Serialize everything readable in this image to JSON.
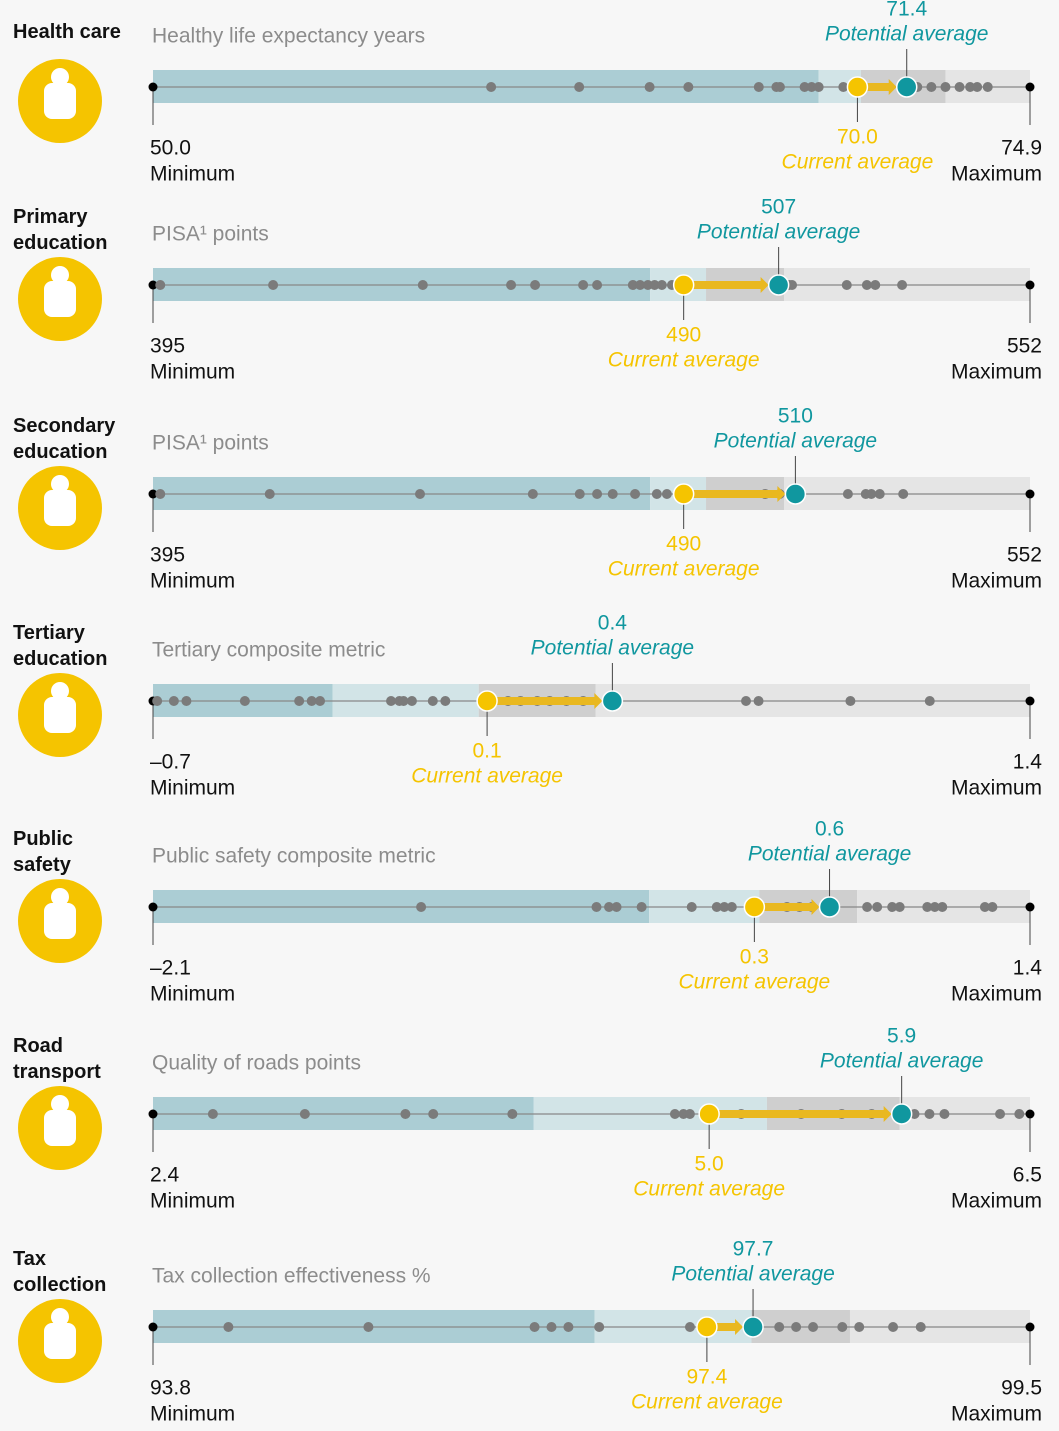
{
  "labels": {
    "minimum": "Minimum",
    "maximum": "Maximum",
    "current": "Current average",
    "potential": "Potential average"
  },
  "colors": {
    "bands": [
      "#abcdd4",
      "#d2e4e7",
      "#cfcfcf",
      "#e5e5e5"
    ],
    "dot": "#7b7b7b",
    "current": "#f5c400",
    "potential": "#10979f",
    "arrow": "#e9b820",
    "icon": "#f5c400"
  },
  "chart_data": [
    {
      "type": "strip",
      "category": "Health care",
      "metric": "Healthy life expectancy years",
      "xlim": [
        50.0,
        74.9
      ],
      "xticks": [
        {
          "value": 50.0,
          "label": "50.0"
        },
        {
          "value": 74.9,
          "label": "74.9"
        }
      ],
      "values": [
        59.6,
        62.1,
        64.1,
        65.2,
        67.2,
        67.7,
        67.8,
        68.5,
        68.7,
        68.9,
        69.6,
        71.7,
        72.1,
        72.5,
        72.9,
        73.2,
        73.4,
        73.7
      ],
      "bands": [
        68.9,
        70.1,
        72.5
      ],
      "current": {
        "value": 70.0,
        "label": "70.0"
      },
      "potential": {
        "value": 71.4,
        "label": "71.4"
      }
    },
    {
      "type": "strip",
      "category": "Primary education",
      "metric": "PISA¹ points",
      "xlim": [
        395,
        552
      ],
      "xticks": [
        395,
        552
      ],
      "values": [
        396.3,
        416.5,
        443.3,
        459.1,
        463.4,
        472.0,
        474.5,
        480.9,
        482.2,
        483.6,
        484.8,
        486.1,
        487.9,
        508.9,
        509.4,
        519.2,
        522.8,
        524.3,
        529.1
      ],
      "bands": [
        484,
        494,
        508
      ],
      "current": {
        "value": 490,
        "label": "490"
      },
      "potential": {
        "value": 507,
        "label": "507"
      }
    },
    {
      "type": "strip",
      "category": "Secondary education",
      "metric": "PISA¹ points",
      "xlim": [
        395,
        552
      ],
      "xticks": [
        395,
        552
      ],
      "values": [
        396.3,
        415.9,
        442.8,
        463.0,
        471.4,
        474.5,
        477.3,
        481.3,
        485.2,
        487.0,
        504.6,
        507.2,
        519.4,
        522.6,
        523.6,
        525.1,
        529.3
      ],
      "bands": [
        484,
        494,
        508
      ],
      "current": {
        "value": 490,
        "label": "490"
      },
      "potential": {
        "value": 510,
        "label": "510"
      }
    },
    {
      "type": "strip",
      "category": "Tertiary education",
      "metric": "Tertiary composite metric",
      "xlim": [
        -0.7,
        1.4
      ],
      "xticks": [
        {
          "value": -0.7,
          "label": "–0.7"
        },
        1.4
      ],
      "values": [
        -0.69,
        -0.65,
        -0.62,
        -0.48,
        -0.35,
        -0.32,
        -0.3,
        -0.13,
        -0.11,
        -0.1,
        -0.08,
        -0.03,
        0.0,
        0.15,
        0.18,
        0.22,
        0.25,
        0.29,
        0.33,
        0.4,
        0.72,
        0.75,
        0.97,
        1.16
      ],
      "bands": [
        -0.27,
        0.08,
        0.36
      ],
      "current": {
        "value": 0.1,
        "label": "0.1"
      },
      "potential": {
        "value": 0.4,
        "label": "0.4"
      }
    },
    {
      "type": "strip",
      "category": "Public safety",
      "metric": "Public safety composite metric",
      "xlim": [
        -2.1,
        1.4
      ],
      "xticks": [
        {
          "value": -2.1,
          "label": "–2.1"
        },
        1.4
      ],
      "values": [
        -1.03,
        -0.33,
        -0.28,
        -0.25,
        -0.15,
        0.05,
        0.15,
        0.18,
        0.21,
        0.43,
        0.48,
        0.53,
        0.59,
        0.75,
        0.79,
        0.85,
        0.88,
        0.99,
        1.02,
        1.05,
        1.22,
        1.25
      ],
      "bands": [
        -0.12,
        0.32,
        0.71
      ],
      "current": {
        "value": 0.3,
        "label": "0.3"
      },
      "potential": {
        "value": 0.6,
        "label": "0.6"
      }
    },
    {
      "type": "strip",
      "category": "Road transport",
      "metric": "Quality of roads points",
      "xlim": [
        2.4,
        6.5
      ],
      "xticks": [
        2.4,
        6.5
      ],
      "values": [
        2.68,
        3.11,
        3.58,
        3.71,
        4.08,
        4.84,
        4.88,
        4.91,
        5.15,
        5.43,
        5.62,
        5.76,
        5.96,
        6.03,
        6.1,
        6.36,
        6.45
      ],
      "bands": [
        4.18,
        5.27,
        5.89
      ],
      "current": {
        "value": 5.0,
        "label": "5.0"
      },
      "potential": {
        "value": 5.9,
        "label": "5.9"
      }
    },
    {
      "type": "strip",
      "category": "Tax collection",
      "metric": "Tax collection effectiveness %",
      "xlim": [
        93.8,
        99.5
      ],
      "xticks": [
        93.8,
        99.5
      ],
      "values": [
        94.29,
        95.2,
        96.28,
        96.39,
        96.5,
        96.7,
        97.29,
        97.87,
        97.98,
        98.09,
        98.28,
        98.39,
        98.61,
        98.79
      ],
      "bands": [
        96.67,
        97.69,
        98.33
      ],
      "current": {
        "value": 97.4,
        "label": "97.4"
      },
      "potential": {
        "value": 97.7,
        "label": "97.7"
      }
    }
  ]
}
